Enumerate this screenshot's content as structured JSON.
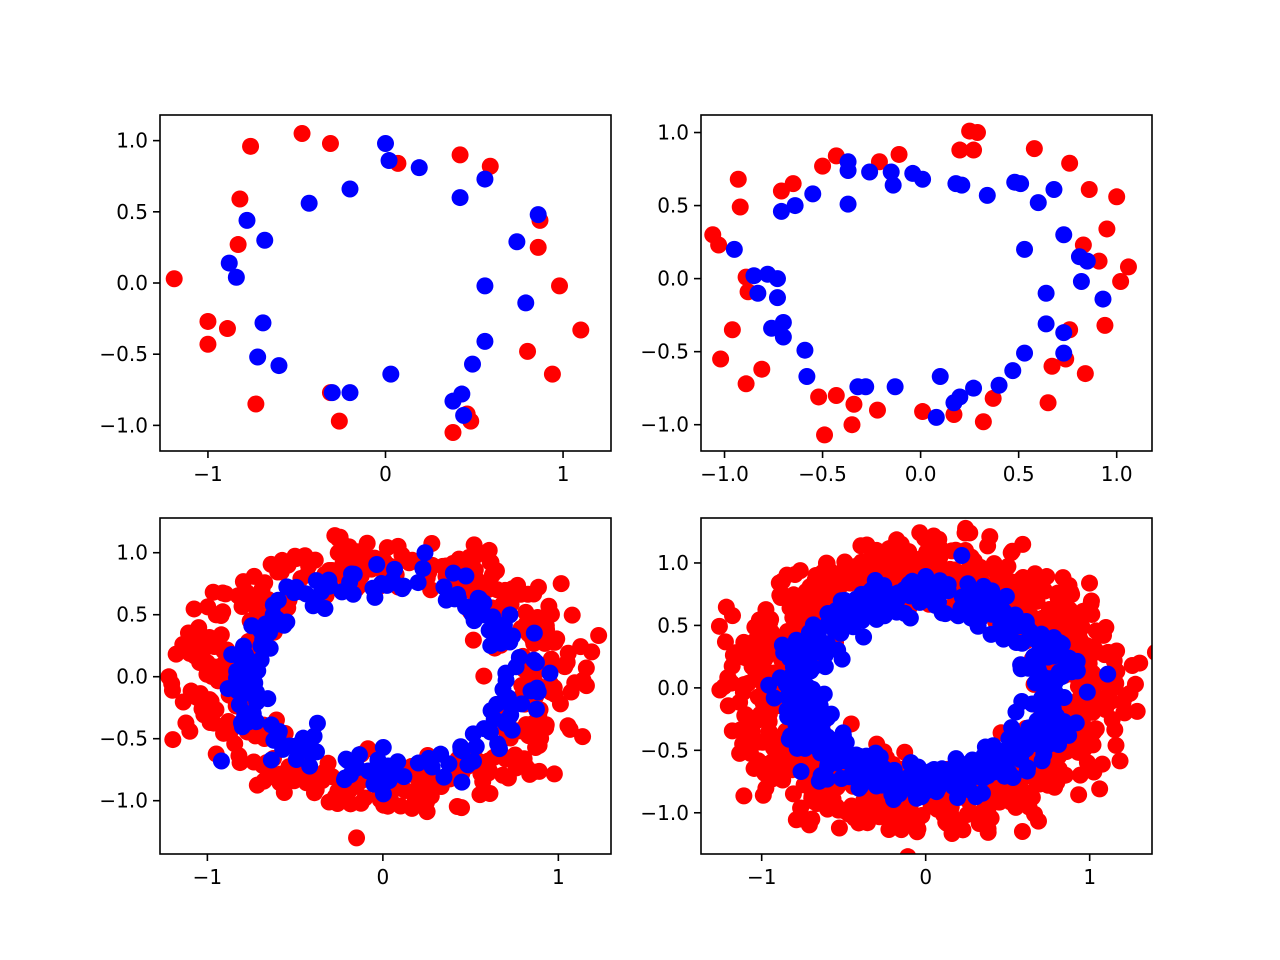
{
  "chart_data": [
    {
      "type": "scatter",
      "title": "",
      "xlabel": "",
      "ylabel": "",
      "xlim": [
        -1.27,
        1.27
      ],
      "ylim": [
        -1.18,
        1.18
      ],
      "grid": false,
      "xticks": [
        {
          "value": -1,
          "label": "−1"
        },
        {
          "value": 0,
          "label": "0"
        },
        {
          "value": 1,
          "label": "1"
        }
      ],
      "yticks": [
        {
          "value": -1.0,
          "label": "−1.0"
        },
        {
          "value": -0.5,
          "label": "−0.5"
        },
        {
          "value": 0.0,
          "label": "0.0"
        },
        {
          "value": 0.5,
          "label": "0.5"
        },
        {
          "value": 1.0,
          "label": "1.0"
        }
      ],
      "series": [
        {
          "color": "#ff0000",
          "points": [
            [
              -1.19,
              0.03
            ],
            [
              -1.0,
              -0.27
            ],
            [
              -1.0,
              -0.43
            ],
            [
              -0.89,
              -0.32
            ],
            [
              -0.82,
              0.59
            ],
            [
              -0.83,
              0.27
            ],
            [
              -0.76,
              0.96
            ],
            [
              -0.73,
              -0.85
            ],
            [
              -0.47,
              1.05
            ],
            [
              -0.31,
              0.98
            ],
            [
              -0.31,
              -0.77
            ],
            [
              -0.26,
              -0.97
            ],
            [
              0.07,
              0.84
            ],
            [
              0.42,
              0.9
            ],
            [
              0.59,
              0.82
            ],
            [
              0.87,
              0.44
            ],
            [
              0.86,
              0.25
            ],
            [
              0.98,
              -0.02
            ],
            [
              1.1,
              -0.33
            ],
            [
              0.8,
              -0.48
            ],
            [
              0.94,
              -0.64
            ],
            [
              0.38,
              -1.05
            ],
            [
              0.46,
              -0.92
            ],
            [
              0.48,
              -0.97
            ]
          ]
        },
        {
          "color": "#0000ff",
          "points": [
            [
              0.0,
              0.98
            ],
            [
              0.02,
              0.86
            ],
            [
              0.19,
              0.81
            ],
            [
              0.56,
              0.73
            ],
            [
              -0.2,
              0.66
            ],
            [
              -0.43,
              0.56
            ],
            [
              0.42,
              0.6
            ],
            [
              0.86,
              0.48
            ],
            [
              -0.78,
              0.44
            ],
            [
              -0.68,
              0.3
            ],
            [
              0.74,
              0.29
            ],
            [
              -0.88,
              0.14
            ],
            [
              -0.84,
              0.04
            ],
            [
              0.56,
              -0.02
            ],
            [
              0.79,
              -0.14
            ],
            [
              -0.69,
              -0.28
            ],
            [
              -0.72,
              -0.52
            ],
            [
              -0.6,
              -0.58
            ],
            [
              0.56,
              -0.41
            ],
            [
              0.49,
              -0.57
            ],
            [
              0.03,
              -0.64
            ],
            [
              -0.3,
              -0.77
            ],
            [
              -0.2,
              -0.77
            ],
            [
              0.43,
              -0.78
            ],
            [
              0.38,
              -0.83
            ],
            [
              0.44,
              -0.93
            ]
          ]
        }
      ]
    },
    {
      "type": "scatter",
      "title": "",
      "xlabel": "",
      "ylabel": "",
      "xlim": [
        -1.12,
        1.18
      ],
      "ylim": [
        -1.18,
        1.12
      ],
      "grid": false,
      "xticks": [
        {
          "value": -1.0,
          "label": "−1.0"
        },
        {
          "value": -0.5,
          "label": "−0.5"
        },
        {
          "value": 0.0,
          "label": "0.0"
        },
        {
          "value": 0.5,
          "label": "0.5"
        },
        {
          "value": 1.0,
          "label": "1.0"
        }
      ],
      "yticks": [
        {
          "value": -1.0,
          "label": "−1.0"
        },
        {
          "value": -0.5,
          "label": "−0.5"
        },
        {
          "value": 0.0,
          "label": "0.0"
        },
        {
          "value": 0.5,
          "label": "0.5"
        },
        {
          "value": 1.0,
          "label": "1.0"
        }
      ],
      "series": [
        {
          "color": "#ff0000",
          "points": [
            [
              -1.06,
              0.3
            ],
            [
              -1.03,
              0.23
            ],
            [
              -0.93,
              0.68
            ],
            [
              -0.92,
              0.49
            ],
            [
              -0.89,
              0.01
            ],
            [
              -0.88,
              -0.09
            ],
            [
              -0.96,
              -0.35
            ],
            [
              -1.02,
              -0.55
            ],
            [
              -0.89,
              -0.72
            ],
            [
              -0.81,
              -0.62
            ],
            [
              -0.71,
              0.6
            ],
            [
              -0.65,
              0.65
            ],
            [
              -0.5,
              0.77
            ],
            [
              -0.43,
              0.84
            ],
            [
              -0.21,
              0.8
            ],
            [
              -0.11,
              0.85
            ],
            [
              0.2,
              0.88
            ],
            [
              0.25,
              1.01
            ],
            [
              0.29,
              1.0
            ],
            [
              0.27,
              0.88
            ],
            [
              0.58,
              0.89
            ],
            [
              0.76,
              0.79
            ],
            [
              0.86,
              0.61
            ],
            [
              1.0,
              0.56
            ],
            [
              0.95,
              0.34
            ],
            [
              0.83,
              0.23
            ],
            [
              0.91,
              0.12
            ],
            [
              1.02,
              -0.02
            ],
            [
              1.06,
              0.08
            ],
            [
              0.94,
              -0.32
            ],
            [
              0.76,
              -0.35
            ],
            [
              0.74,
              -0.55
            ],
            [
              0.67,
              -0.6
            ],
            [
              0.84,
              -0.65
            ],
            [
              0.65,
              -0.85
            ],
            [
              0.37,
              -0.82
            ],
            [
              0.32,
              -0.98
            ],
            [
              0.17,
              -0.93
            ],
            [
              0.01,
              -0.91
            ],
            [
              -0.22,
              -0.9
            ],
            [
              -0.34,
              -0.86
            ],
            [
              -0.35,
              -1.0
            ],
            [
              -0.49,
              -1.07
            ],
            [
              -0.52,
              -0.81
            ],
            [
              -0.43,
              -0.8
            ]
          ]
        },
        {
          "color": "#0000ff",
          "points": [
            [
              -0.95,
              0.2
            ],
            [
              -0.85,
              0.02
            ],
            [
              -0.78,
              0.03
            ],
            [
              -0.73,
              0.0
            ],
            [
              -0.83,
              -0.1
            ],
            [
              -0.73,
              -0.13
            ],
            [
              -0.76,
              -0.34
            ],
            [
              -0.7,
              -0.3
            ],
            [
              -0.7,
              -0.4
            ],
            [
              -0.59,
              -0.49
            ],
            [
              -0.58,
              -0.67
            ],
            [
              -0.71,
              0.46
            ],
            [
              -0.64,
              0.5
            ],
            [
              -0.55,
              0.58
            ],
            [
              -0.37,
              0.74
            ],
            [
              -0.37,
              0.51
            ],
            [
              -0.37,
              0.8
            ],
            [
              -0.26,
              0.73
            ],
            [
              -0.15,
              0.73
            ],
            [
              -0.14,
              0.64
            ],
            [
              -0.04,
              0.72
            ],
            [
              0.01,
              0.68
            ],
            [
              0.18,
              0.65
            ],
            [
              0.21,
              0.64
            ],
            [
              0.34,
              0.57
            ],
            [
              0.48,
              0.66
            ],
            [
              0.51,
              0.65
            ],
            [
              0.6,
              0.52
            ],
            [
              0.68,
              0.61
            ],
            [
              0.73,
              0.3
            ],
            [
              0.81,
              0.15
            ],
            [
              0.85,
              0.12
            ],
            [
              0.82,
              -0.02
            ],
            [
              0.93,
              -0.14
            ],
            [
              0.53,
              0.2
            ],
            [
              0.64,
              -0.1
            ],
            [
              0.64,
              -0.31
            ],
            [
              0.73,
              -0.37
            ],
            [
              0.53,
              -0.51
            ],
            [
              0.47,
              -0.63
            ],
            [
              0.73,
              -0.51
            ],
            [
              0.4,
              -0.73
            ],
            [
              0.27,
              -0.75
            ],
            [
              0.2,
              -0.81
            ],
            [
              0.17,
              -0.85
            ],
            [
              0.08,
              -0.95
            ],
            [
              0.1,
              -0.67
            ],
            [
              -0.13,
              -0.74
            ],
            [
              -0.28,
              -0.74
            ],
            [
              -0.32,
              -0.74
            ]
          ]
        }
      ]
    },
    {
      "type": "scatter",
      "title": "",
      "xlabel": "",
      "ylabel": "",
      "xlim": [
        -1.27,
        1.3
      ],
      "ylim": [
        -1.43,
        1.28
      ],
      "grid": false,
      "xticks": [
        {
          "value": -1,
          "label": "−1"
        },
        {
          "value": 0,
          "label": "0"
        },
        {
          "value": 1,
          "label": "1"
        }
      ],
      "yticks": [
        {
          "value": -1.0,
          "label": "−1.0"
        },
        {
          "value": -0.5,
          "label": "−0.5"
        },
        {
          "value": 0.0,
          "label": "0.0"
        },
        {
          "value": 0.5,
          "label": "0.5"
        },
        {
          "value": 1.0,
          "label": "1.0"
        }
      ],
      "ring": {
        "red": {
          "rx": 0.98,
          "ry": 0.95,
          "spread": 0.13,
          "count": 420,
          "seed": 3,
          "extra": [
            [
              -0.15,
              -1.3
            ],
            [
              -1.14,
              0.26
            ],
            [
              1.19,
              0.2
            ],
            [
              -1.1,
              -0.44
            ]
          ]
        },
        "blue": {
          "rx": 0.79,
          "ry": 0.76,
          "spread": 0.065,
          "count": 190,
          "seed": 11,
          "extra": [
            [
              -0.92,
              -0.68
            ],
            [
              0.24,
              1.0
            ],
            [
              -0.33,
              0.55
            ],
            [
              0.45,
              -0.85
            ]
          ]
        }
      }
    },
    {
      "type": "scatter",
      "title": "",
      "xlabel": "",
      "ylabel": "",
      "xlim": [
        -1.37,
        1.38
      ],
      "ylim": [
        -1.33,
        1.36
      ],
      "grid": false,
      "xticks": [
        {
          "value": -1,
          "label": "−1"
        },
        {
          "value": 0,
          "label": "0"
        },
        {
          "value": 1,
          "label": "1"
        }
      ],
      "yticks": [
        {
          "value": -1.0,
          "label": "−1.0"
        },
        {
          "value": -0.5,
          "label": "−0.5"
        },
        {
          "value": 0.0,
          "label": "0.0"
        },
        {
          "value": 0.5,
          "label": "0.5"
        },
        {
          "value": 1.0,
          "label": "1.0"
        }
      ],
      "ring": {
        "red": {
          "rx": 1.0,
          "ry": 0.95,
          "spread": 0.15,
          "count": 900,
          "seed": 5,
          "extra": [
            [
              0.24,
              1.24
            ],
            [
              -1.23,
              0.01
            ],
            [
              -0.99,
              -0.86
            ],
            [
              0.59,
              -1.15
            ]
          ]
        },
        "blue": {
          "rx": 0.77,
          "ry": 0.76,
          "spread": 0.08,
          "count": 520,
          "seed": 17,
          "extra": [
            [
              0.22,
              1.06
            ],
            [
              -0.76,
              -0.67
            ],
            [
              0.92,
              0.2
            ],
            [
              1.11,
              0.11
            ]
          ]
        }
      }
    }
  ]
}
